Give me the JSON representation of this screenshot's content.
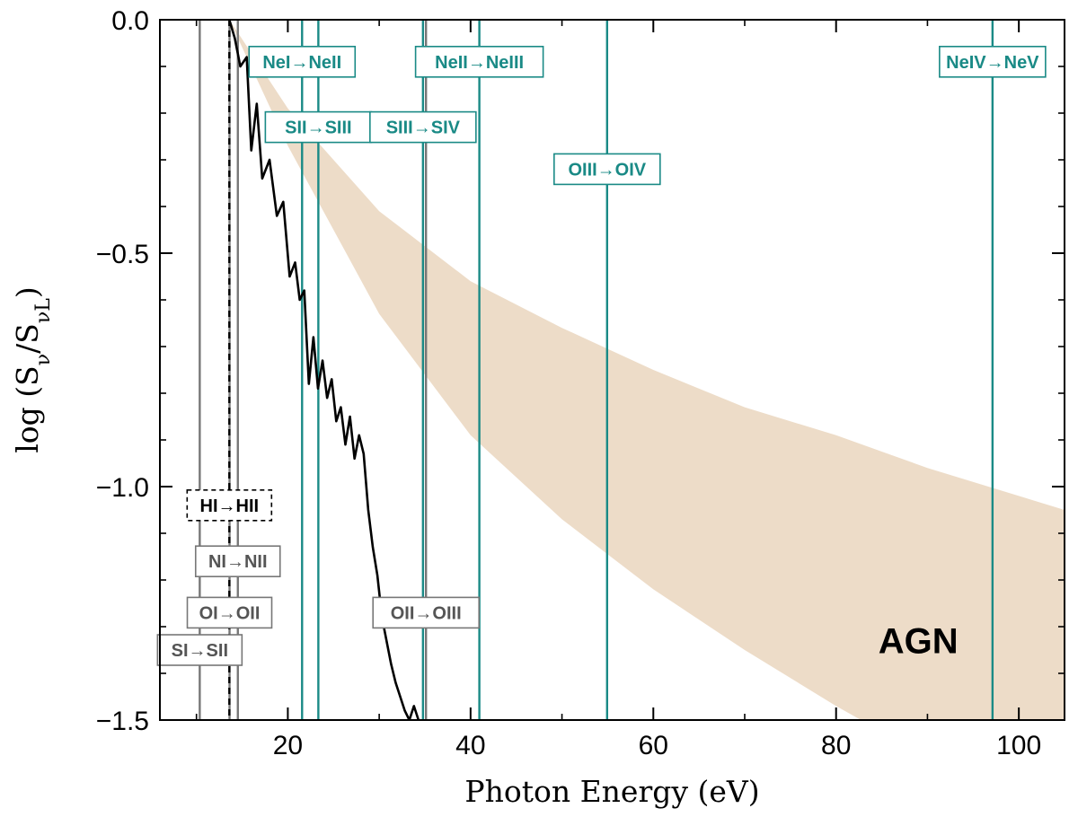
{
  "chart_data": {
    "type": "line",
    "xlabel": "Photon Energy (eV)",
    "ylabel_prefix": "log (S",
    "ylabel_sub1": "ν",
    "ylabel_mid": "/S",
    "ylabel_sub2": "νL",
    "ylabel_suffix": ")",
    "xlim": [
      6,
      105
    ],
    "ylim": [
      -1.5,
      0.0
    ],
    "xticks": [
      20,
      40,
      60,
      80,
      100
    ],
    "xtick_labels": [
      "20",
      "40",
      "60",
      "80",
      "100"
    ],
    "yticks": [
      0.0,
      -0.5,
      -1.0,
      -1.5
    ],
    "ytick_labels": [
      "0.0",
      "−0.5",
      "−1.0",
      "−1.5"
    ],
    "region_label": "AGN",
    "agn_band": {
      "name": "AGN",
      "color": "#eddcc8",
      "x": [
        13.6,
        20,
        30,
        40,
        50,
        60,
        70,
        80,
        90,
        100,
        105
      ],
      "upper": [
        0.0,
        -0.19,
        -0.41,
        -0.56,
        -0.66,
        -0.75,
        -0.83,
        -0.89,
        -0.96,
        -1.02,
        -1.05
      ],
      "lower": [
        0.0,
        -0.27,
        -0.63,
        -0.89,
        -1.07,
        -1.22,
        -1.35,
        -1.47,
        -1.58,
        -1.68,
        -1.73
      ]
    },
    "spectrum": {
      "name": "spectrum",
      "color": "#000000",
      "x": [
        13.6,
        14.2,
        14.8,
        15.5,
        16.0,
        16.6,
        17.2,
        18.0,
        18.8,
        19.5,
        20.2,
        20.8,
        21.3,
        21.8,
        22.3,
        22.8,
        23.3,
        23.8,
        24.3,
        24.8,
        25.3,
        25.8,
        26.3,
        26.8,
        27.3,
        27.8,
        28.3,
        28.8,
        29.3,
        29.8,
        30.3,
        30.8,
        31.3,
        31.8,
        32.3,
        32.8,
        33.3,
        33.8,
        34.3
      ],
      "y": [
        0.0,
        -0.04,
        -0.1,
        -0.08,
        -0.28,
        -0.18,
        -0.34,
        -0.3,
        -0.42,
        -0.39,
        -0.55,
        -0.52,
        -0.6,
        -0.58,
        -0.78,
        -0.68,
        -0.79,
        -0.73,
        -0.81,
        -0.77,
        -0.86,
        -0.83,
        -0.91,
        -0.85,
        -0.94,
        -0.89,
        -0.93,
        -1.05,
        -1.13,
        -1.19,
        -1.28,
        -1.33,
        -1.38,
        -1.42,
        -1.45,
        -1.48,
        -1.5,
        -1.47,
        -1.5
      ]
    },
    "ionization_lines": [
      {
        "label": "SI→SII",
        "energy": 10.36,
        "group": "low",
        "box_y": -1.35
      },
      {
        "label": "OI→OII",
        "energy": 13.62,
        "group": "low",
        "box_y": -1.27
      },
      {
        "label": "HI→HII",
        "energy": 13.6,
        "group": "hydrogen",
        "box_y": -1.04
      },
      {
        "label": "NI→NII",
        "energy": 14.53,
        "group": "low",
        "box_y": -1.16
      },
      {
        "label": "OII→OIII",
        "energy": 35.12,
        "group": "low",
        "box_y": -1.27
      },
      {
        "label": "NeI→NeII",
        "energy": 21.56,
        "group": "high",
        "box_y": -0.09
      },
      {
        "label": "SII→SIII",
        "energy": 23.34,
        "group": "high",
        "box_y": -0.23
      },
      {
        "label": "SIII→SIV",
        "energy": 34.79,
        "group": "high",
        "box_y": -0.23
      },
      {
        "label": "NeII→NeIII",
        "energy": 40.96,
        "group": "high",
        "box_y": -0.09
      },
      {
        "label": "OIII→OIV",
        "energy": 54.94,
        "group": "high",
        "box_y": -0.32
      },
      {
        "label": "NeIV→NeV",
        "energy": 97.12,
        "group": "high",
        "box_y": -0.09
      }
    ],
    "colors": {
      "high": "#1a8a86",
      "low": "#777777",
      "hydrogen": "#000000",
      "low_text": "#555555"
    }
  }
}
